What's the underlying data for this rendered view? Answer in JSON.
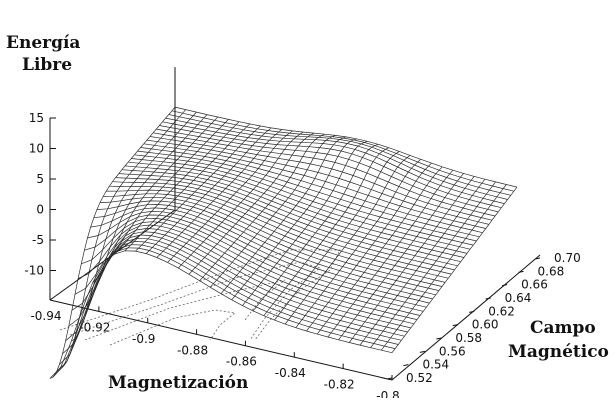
{
  "chart_data": {
    "type": "surface",
    "zlabel": [
      "Energía",
      "Libre"
    ],
    "xlabel": "Magnetización",
    "ylabel": [
      "Campo",
      "Magnético"
    ],
    "z_ticks": [
      "15",
      "10",
      "5",
      "0",
      "-5",
      "-10"
    ],
    "x_ticks": [
      "-0.94",
      "-0.92",
      "-0.9",
      "-0.88",
      "-0.86",
      "-0.84",
      "-0.82",
      "-0.8"
    ],
    "y_ticks": [
      "0.52",
      "0.54",
      "0.56",
      "0.58",
      "0.60",
      "0.62",
      "0.64",
      "0.66",
      "0.68",
      "0.70"
    ],
    "xlim": [
      -0.95,
      -0.8
    ],
    "ylim": [
      0.51,
      0.7
    ],
    "zlim": [
      -10,
      15
    ],
    "surface_color": "#2a2a2a",
    "contour_projection": true,
    "grid": false
  }
}
